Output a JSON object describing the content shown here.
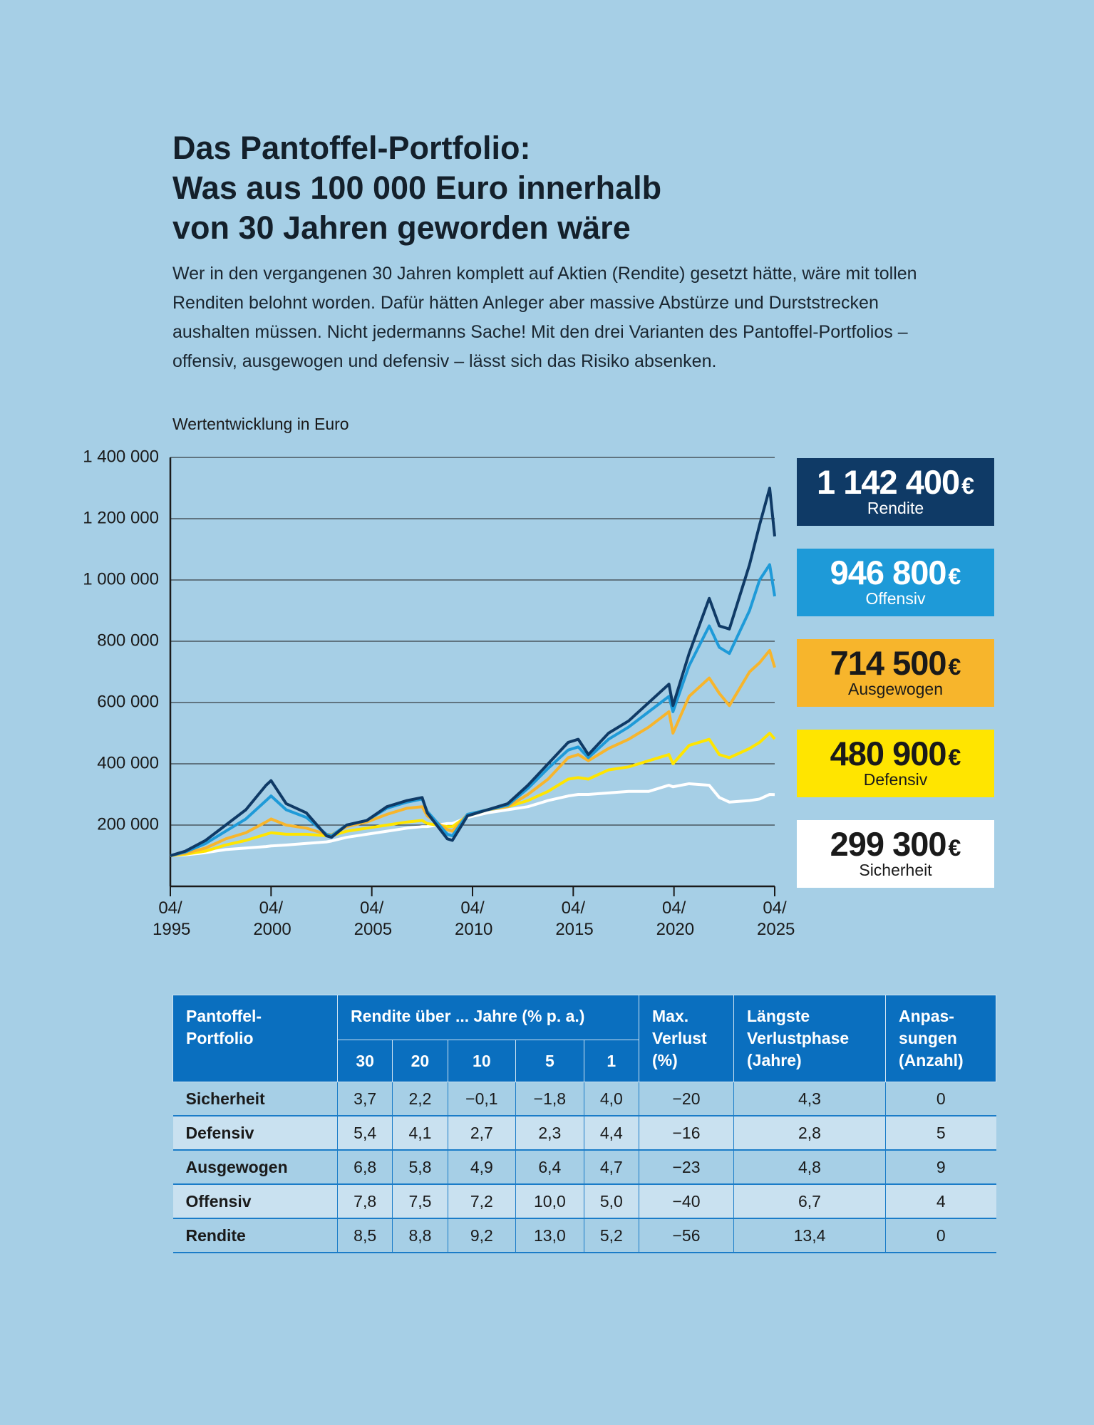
{
  "header": {
    "title_lines": [
      "Das Pantoffel-Portfolio:",
      "Was aus 100 000 Euro innerhalb",
      "von 30 Jahren geworden wäre"
    ],
    "intro": "Wer in den vergangenen 30 Jahren komplett auf Aktien (Rendite) gesetzt hätte, wäre mit tollen Renditen belohnt worden. Dafür hätten Anleger aber massive Abstürze und Durststrecken aushalten müssen. Nicht jedermanns Sache! Mit den drei Varianten des Pantoffel-Portfolios – offensiv, ausgewogen und defensiv – lässt sich das Risiko absenken."
  },
  "chart_data": {
    "type": "line",
    "y_label": "Wertentwicklung in Euro",
    "currency": "€",
    "x": [
      1995.25,
      1996,
      1997,
      1998,
      1999,
      2000,
      2000.25,
      2001,
      2002,
      2003,
      2003.25,
      2004,
      2005,
      2006,
      2007,
      2007.75,
      2008,
      2009,
      2009.25,
      2010,
      2011,
      2012,
      2013,
      2014,
      2015,
      2015.5,
      2016,
      2017,
      2018,
      2019,
      2020,
      2020.2,
      2021,
      2022,
      2022.5,
      2023,
      2024,
      2024.5,
      2025,
      2025.25
    ],
    "series": [
      {
        "name": "Rendite",
        "color": "#0f3a66",
        "label_color": "#ffffff",
        "values": [
          100000,
          115000,
          150000,
          200000,
          250000,
          330000,
          345000,
          270000,
          240000,
          165000,
          160000,
          200000,
          215000,
          260000,
          280000,
          290000,
          240000,
          155000,
          150000,
          230000,
          250000,
          270000,
          330000,
          400000,
          470000,
          480000,
          430000,
          500000,
          540000,
          600000,
          660000,
          590000,
          760000,
          940000,
          850000,
          840000,
          1050000,
          1180000,
          1300000,
          1142400
        ],
        "value_labels": [
          null,
          null,
          null,
          null,
          null,
          null,
          null,
          null,
          null,
          null,
          null,
          null,
          null,
          null,
          null,
          null,
          null,
          null,
          null,
          null,
          null,
          null,
          null,
          null,
          null,
          null,
          null,
          null,
          null,
          null,
          null,
          null,
          null,
          null,
          null,
          null,
          null,
          null,
          null,
          "1 142 400"
        ]
      },
      {
        "name": "Offensiv",
        "color": "#1e9ad8",
        "label_color": "#ffffff",
        "values": [
          100000,
          112000,
          140000,
          180000,
          220000,
          280000,
          295000,
          250000,
          225000,
          170000,
          165000,
          200000,
          215000,
          255000,
          275000,
          285000,
          245000,
          170000,
          165000,
          235000,
          250000,
          265000,
          320000,
          385000,
          445000,
          455000,
          420000,
          480000,
          520000,
          570000,
          620000,
          570000,
          720000,
          850000,
          780000,
          760000,
          900000,
          1000000,
          1050000,
          946800
        ],
        "value_labels": [
          null,
          null,
          null,
          null,
          null,
          null,
          null,
          null,
          null,
          null,
          null,
          null,
          null,
          null,
          null,
          null,
          null,
          null,
          null,
          null,
          null,
          null,
          null,
          null,
          null,
          null,
          null,
          null,
          null,
          null,
          null,
          null,
          null,
          null,
          null,
          null,
          null,
          null,
          null,
          "946 800"
        ]
      },
      {
        "name": "Ausgewogen",
        "color": "#f7b52c",
        "label_color": "#1a1a1a",
        "values": [
          100000,
          108000,
          125000,
          155000,
          175000,
          210000,
          220000,
          200000,
          190000,
          170000,
          168000,
          195000,
          210000,
          235000,
          255000,
          260000,
          230000,
          185000,
          180000,
          235000,
          250000,
          260000,
          300000,
          350000,
          420000,
          430000,
          410000,
          450000,
          480000,
          520000,
          570000,
          500000,
          620000,
          680000,
          630000,
          590000,
          700000,
          730000,
          770000,
          714500
        ],
        "value_labels": [
          null,
          null,
          null,
          null,
          null,
          null,
          null,
          null,
          null,
          null,
          null,
          null,
          null,
          null,
          null,
          null,
          null,
          null,
          null,
          null,
          null,
          null,
          null,
          null,
          null,
          null,
          null,
          null,
          null,
          null,
          null,
          null,
          null,
          null,
          null,
          null,
          null,
          null,
          null,
          "714 500"
        ]
      },
      {
        "name": "Defensiv",
        "color": "#ffe500",
        "label_color": "#1a1a1a",
        "values": [
          100000,
          105000,
          115000,
          135000,
          150000,
          170000,
          175000,
          170000,
          170000,
          165000,
          165000,
          180000,
          190000,
          200000,
          210000,
          215000,
          205000,
          195000,
          195000,
          230000,
          250000,
          260000,
          280000,
          310000,
          350000,
          355000,
          350000,
          380000,
          390000,
          410000,
          430000,
          400000,
          460000,
          480000,
          430000,
          420000,
          450000,
          470000,
          500000,
          480900
        ],
        "value_labels": [
          null,
          null,
          null,
          null,
          null,
          null,
          null,
          null,
          null,
          null,
          null,
          null,
          null,
          null,
          null,
          null,
          null,
          null,
          null,
          null,
          null,
          null,
          null,
          null,
          null,
          null,
          null,
          null,
          null,
          null,
          null,
          null,
          null,
          null,
          null,
          null,
          null,
          null,
          null,
          "480 900"
        ]
      },
      {
        "name": "Sicherheit",
        "color": "#ffffff",
        "label_color": "#1a1a1a",
        "values": [
          100000,
          103000,
          110000,
          120000,
          125000,
          130000,
          132000,
          135000,
          140000,
          145000,
          148000,
          160000,
          170000,
          180000,
          190000,
          195000,
          195000,
          205000,
          205000,
          225000,
          240000,
          250000,
          260000,
          280000,
          295000,
          300000,
          300000,
          305000,
          310000,
          310000,
          330000,
          325000,
          335000,
          330000,
          290000,
          275000,
          280000,
          285000,
          300000,
          299300
        ],
        "value_labels": [
          null,
          null,
          null,
          null,
          null,
          null,
          null,
          null,
          null,
          null,
          null,
          null,
          null,
          null,
          null,
          null,
          null,
          null,
          null,
          null,
          null,
          null,
          null,
          null,
          null,
          null,
          null,
          null,
          null,
          null,
          null,
          null,
          null,
          null,
          null,
          null,
          null,
          null,
          null,
          "299 300"
        ]
      }
    ],
    "xlim": [
      1995.25,
      2025.25
    ],
    "xticks": [
      {
        "value": 1995.25,
        "label": "04/ 1995"
      },
      {
        "value": 2000.25,
        "label": "04/ 2000"
      },
      {
        "value": 2005.25,
        "label": "04/ 2005"
      },
      {
        "value": 2010.25,
        "label": "04/ 2010"
      },
      {
        "value": 2015.25,
        "label": "04/ 2015"
      },
      {
        "value": 2020.25,
        "label": "04/ 2020"
      },
      {
        "value": 2025.25,
        "label": "04/ 2025"
      }
    ],
    "ylim": [
      0,
      1400000
    ],
    "yticks": [
      {
        "value": 200000,
        "label": "200 000"
      },
      {
        "value": 400000,
        "label": "400 000"
      },
      {
        "value": 600000,
        "label": "600 000"
      },
      {
        "value": 800000,
        "label": "800 000"
      },
      {
        "value": 1000000,
        "label": "1 000 000"
      },
      {
        "value": 1200000,
        "label": "1 200 000"
      },
      {
        "value": 1400000,
        "label": "1 400 000"
      }
    ],
    "grid": true
  },
  "table": {
    "header": {
      "portfolio": "Pantoffel-Portfolio",
      "returns": "Rendite über ... Jahre (% p. a.)",
      "years": [
        "30",
        "20",
        "10",
        "5",
        "1"
      ],
      "max_loss": "Max. Verlust (%)",
      "longest": "Längste Verlustphase (Jahre)",
      "adjustments": "Anpas­sungen (Anzahl)"
    },
    "rows": [
      [
        "Sicherheit",
        "3,7",
        "2,2",
        "−0,1",
        "−1,8",
        "4,0",
        "−20",
        "4,3",
        "0"
      ],
      [
        "Defensiv",
        "5,4",
        "4,1",
        "2,7",
        "2,3",
        "4,4",
        "−16",
        "2,8",
        "5"
      ],
      [
        "Ausgewogen",
        "6,8",
        "5,8",
        "4,9",
        "6,4",
        "4,7",
        "−23",
        "4,8",
        "9"
      ],
      [
        "Offensiv",
        "7,8",
        "7,5",
        "7,2",
        "10,0",
        "5,0",
        "−40",
        "6,7",
        "4"
      ],
      [
        "Rendite",
        "8,5",
        "8,8",
        "9,2",
        "13,0",
        "5,2",
        "−56",
        "13,4",
        "0"
      ]
    ]
  }
}
